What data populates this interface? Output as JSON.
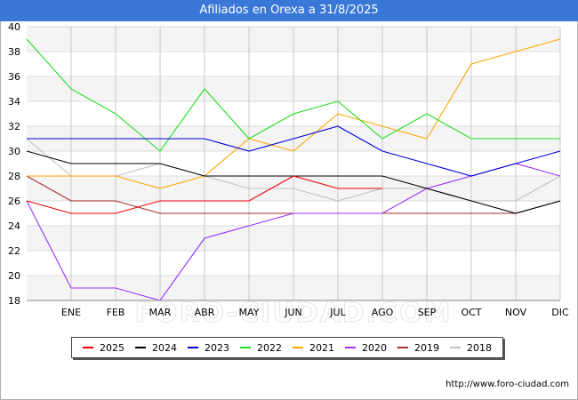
{
  "header": {
    "title": "Afiliados en Orexa a 31/8/2025"
  },
  "footer": {
    "source": "http://www.foro-ciudad.com",
    "watermark": "FORO-CIUDAD.COM"
  },
  "chart_data": {
    "type": "line",
    "title": "Afiliados en Orexa a 31/8/2025",
    "xlabel": "",
    "ylabel": "",
    "categories": [
      "",
      "ENE",
      "FEB",
      "MAR",
      "ABR",
      "MAY",
      "JUN",
      "JUL",
      "AGO",
      "SEP",
      "OCT",
      "NOV",
      "DIC"
    ],
    "ylim": [
      18,
      40
    ],
    "yticks": [
      18,
      20,
      22,
      24,
      26,
      28,
      30,
      32,
      34,
      36,
      38,
      40
    ],
    "grid": true,
    "legend_position": "bottom",
    "series": [
      {
        "name": "2018",
        "color": "#c0c0c0",
        "values": [
          31,
          28,
          28,
          29,
          28,
          27,
          27,
          26,
          27,
          27,
          26,
          26,
          28
        ]
      },
      {
        "name": "2019",
        "color": "#a52a2a",
        "values": [
          28,
          26,
          26,
          25,
          25,
          25,
          25,
          25,
          25,
          25,
          25,
          25,
          26
        ]
      },
      {
        "name": "2020",
        "color": "#9b30ff",
        "values": [
          26,
          19,
          19,
          18,
          23,
          24,
          25,
          25,
          25,
          27,
          28,
          29,
          28
        ]
      },
      {
        "name": "2021",
        "color": "#ffa500",
        "values": [
          28,
          28,
          28,
          27,
          28,
          31,
          30,
          33,
          32,
          31,
          37,
          38,
          39
        ]
      },
      {
        "name": "2022",
        "color": "#22dd22",
        "values": [
          39,
          35,
          33,
          30,
          35,
          31,
          33,
          34,
          31,
          33,
          31,
          31,
          31
        ]
      },
      {
        "name": "2023",
        "color": "#0000dd",
        "values": [
          31,
          31,
          31,
          31,
          31,
          30,
          31,
          32,
          30,
          29,
          28,
          29,
          30
        ]
      },
      {
        "name": "2024",
        "color": "#000000",
        "values": [
          30,
          29,
          29,
          29,
          28,
          28,
          28,
          28,
          28,
          27,
          26,
          25,
          26
        ]
      },
      {
        "name": "2025",
        "color": "#ee0000",
        "values": [
          26,
          25,
          25,
          26,
          26,
          26,
          28,
          27,
          27,
          null,
          null,
          null,
          null
        ]
      }
    ],
    "legend_order": [
      "2025",
      "2024",
      "2023",
      "2022",
      "2021",
      "2020",
      "2019",
      "2018"
    ]
  }
}
